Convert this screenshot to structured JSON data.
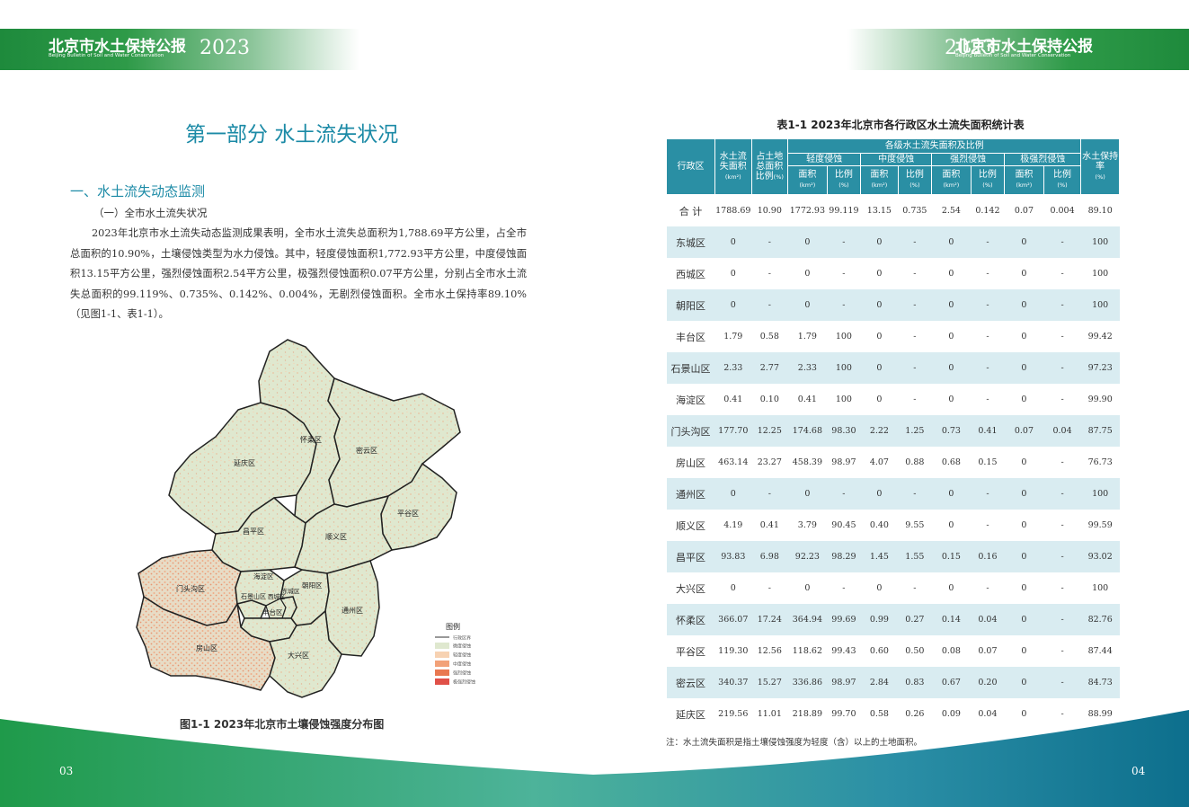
{
  "header": {
    "title": "北京市水土保持公报",
    "subtitle": "Beijing Bulletin of Soil and Water Conservation",
    "year": "2023"
  },
  "left_page": {
    "part_title": "第一部分 水土流失状况",
    "section_title": "一、水土流失动态监测",
    "subsection_title": "（一）全市水土流失状况",
    "paragraph": "2023年北京市水土流失动态监测成果表明，全市水土流失总面积为1,788.69平方公里，占全市总面积的10.90%，土壤侵蚀类型为水力侵蚀。其中，轻度侵蚀面积1,772.93平方公里，中度侵蚀面积13.15平方公里，强烈侵蚀面积2.54平方公里，极强烈侵蚀面积0.07平方公里，分别占全市水土流失总面积的99.119%、0.735%、0.142%、0.004%，无剧烈侵蚀面积。全市水土保持率89.10%（见图1-1、表1-1）。",
    "figure_caption": "图1-1  2023年北京市土壤侵蚀强度分布图",
    "page_number": "03"
  },
  "map": {
    "districts": [
      "延庆区",
      "怀柔区",
      "密云区",
      "平谷区",
      "昌平区",
      "顺义区",
      "门头沟区",
      "海淀区",
      "朝阳区",
      "石景山区",
      "西城区",
      "东城区",
      "丰台区",
      "通州区",
      "房山区",
      "大兴区"
    ],
    "legend_title": "图例",
    "legend": [
      {
        "label": "行政区界",
        "color": "#333333"
      },
      {
        "label": "微度侵蚀",
        "color": "#dfe8cf"
      },
      {
        "label": "轻度侵蚀",
        "color": "#f7d2b2"
      },
      {
        "label": "中度侵蚀",
        "color": "#f2a178"
      },
      {
        "label": "强烈侵蚀",
        "color": "#e97850"
      },
      {
        "label": "极强烈侵蚀",
        "color": "#e05048"
      }
    ]
  },
  "right_page": {
    "table_caption": "表1-1  2023年北京市各行政区水土流失面积统计表",
    "note": "注：水土流失面积是指土壤侵蚀强度为轻度（含）以上的土地面积。",
    "page_number": "04"
  },
  "table": {
    "headers": {
      "district": "行政区",
      "loss_area": "水土流失面积",
      "loss_area_unit": "(km²)",
      "land_ratio": "占土地总面积比例",
      "land_ratio_unit": "(%)",
      "grades_group": "各级水土流失面积及比例",
      "mild": "轻度侵蚀",
      "moderate": "中度侵蚀",
      "intense": "强烈侵蚀",
      "extreme": "极强烈侵蚀",
      "area": "面积",
      "area_unit": "(km²)",
      "ratio": "比例",
      "ratio_unit": "(%)",
      "retention": "水土保持率",
      "retention_unit": "(%)"
    },
    "rows": [
      [
        "合  计",
        "1788.69",
        "10.90",
        "1772.93",
        "99.119",
        "13.15",
        "0.735",
        "2.54",
        "0.142",
        "0.07",
        "0.004",
        "89.10"
      ],
      [
        "东城区",
        "0",
        "-",
        "0",
        "-",
        "0",
        "-",
        "0",
        "-",
        "0",
        "-",
        "100"
      ],
      [
        "西城区",
        "0",
        "-",
        "0",
        "-",
        "0",
        "-",
        "0",
        "-",
        "0",
        "-",
        "100"
      ],
      [
        "朝阳区",
        "0",
        "-",
        "0",
        "-",
        "0",
        "-",
        "0",
        "-",
        "0",
        "-",
        "100"
      ],
      [
        "丰台区",
        "1.79",
        "0.58",
        "1.79",
        "100",
        "0",
        "-",
        "0",
        "-",
        "0",
        "-",
        "99.42"
      ],
      [
        "石景山区",
        "2.33",
        "2.77",
        "2.33",
        "100",
        "0",
        "-",
        "0",
        "-",
        "0",
        "-",
        "97.23"
      ],
      [
        "海淀区",
        "0.41",
        "0.10",
        "0.41",
        "100",
        "0",
        "-",
        "0",
        "-",
        "0",
        "-",
        "99.90"
      ],
      [
        "门头沟区",
        "177.70",
        "12.25",
        "174.68",
        "98.30",
        "2.22",
        "1.25",
        "0.73",
        "0.41",
        "0.07",
        "0.04",
        "87.75"
      ],
      [
        "房山区",
        "463.14",
        "23.27",
        "458.39",
        "98.97",
        "4.07",
        "0.88",
        "0.68",
        "0.15",
        "0",
        "-",
        "76.73"
      ],
      [
        "通州区",
        "0",
        "-",
        "0",
        "-",
        "0",
        "-",
        "0",
        "-",
        "0",
        "-",
        "100"
      ],
      [
        "顺义区",
        "4.19",
        "0.41",
        "3.79",
        "90.45",
        "0.40",
        "9.55",
        "0",
        "-",
        "0",
        "-",
        "99.59"
      ],
      [
        "昌平区",
        "93.83",
        "6.98",
        "92.23",
        "98.29",
        "1.45",
        "1.55",
        "0.15",
        "0.16",
        "0",
        "-",
        "93.02"
      ],
      [
        "大兴区",
        "0",
        "-",
        "0",
        "-",
        "0",
        "-",
        "0",
        "-",
        "0",
        "-",
        "100"
      ],
      [
        "怀柔区",
        "366.07",
        "17.24",
        "364.94",
        "99.69",
        "0.99",
        "0.27",
        "0.14",
        "0.04",
        "0",
        "-",
        "82.76"
      ],
      [
        "平谷区",
        "119.30",
        "12.56",
        "118.62",
        "99.43",
        "0.60",
        "0.50",
        "0.08",
        "0.07",
        "0",
        "-",
        "87.44"
      ],
      [
        "密云区",
        "340.37",
        "15.27",
        "336.86",
        "98.97",
        "2.84",
        "0.83",
        "0.67",
        "0.20",
        "0",
        "-",
        "84.73"
      ],
      [
        "延庆区",
        "219.56",
        "11.01",
        "218.89",
        "99.70",
        "0.58",
        "0.26",
        "0.09",
        "0.04",
        "0",
        "-",
        "88.99"
      ]
    ]
  }
}
